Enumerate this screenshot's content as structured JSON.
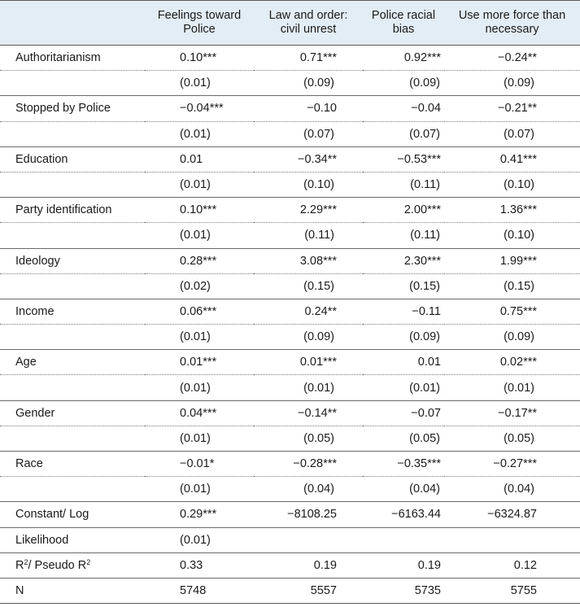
{
  "headers": [
    "",
    "Feelings toward Police",
    "Law and order: civil unrest",
    "Police racial bias",
    "Use more force than necessary"
  ],
  "header_lines": [
    [
      "Feelings toward",
      "Police"
    ],
    [
      "Law and order:",
      "civil unrest"
    ],
    [
      "Police racial",
      "bias"
    ],
    [
      "Use more force than",
      "necessary"
    ]
  ],
  "rows": [
    {
      "label": "Authoritarianism",
      "est": [
        "0.10***",
        "0.71***",
        "0.92***",
        "−0.24**"
      ],
      "se": [
        "(0.01)",
        "(0.09)",
        "(0.09)",
        "(0.09)"
      ]
    },
    {
      "label": "Stopped by Police",
      "est": [
        "−0.04***",
        "−0.10",
        "−0.04",
        "−0.21**"
      ],
      "se": [
        "(0.01)",
        "(0.07)",
        "(0.07)",
        "(0.07)"
      ]
    },
    {
      "label": "Education",
      "est": [
        "0.01",
        "−0.34**",
        "−0.53***",
        "0.41***"
      ],
      "se": [
        "(0.01)",
        "(0.10)",
        "(0.11)",
        "(0.10)"
      ]
    },
    {
      "label": "Party identification",
      "est": [
        "0.10***",
        "2.29***",
        "2.00***",
        "1.36***"
      ],
      "se": [
        "(0.01)",
        "(0.11)",
        "(0.11)",
        "(0.10)"
      ]
    },
    {
      "label": "Ideology",
      "est": [
        "0.28***",
        "3.08***",
        "2.30***",
        "1.99***"
      ],
      "se": [
        "(0.02)",
        "(0.15)",
        "(0.15)",
        "(0.15)"
      ]
    },
    {
      "label": "Income",
      "est": [
        "0.06***",
        "0.24**",
        "−0.11",
        "0.75***"
      ],
      "se": [
        "(0.01)",
        "(0.09)",
        "(0.09)",
        "(0.09)"
      ]
    },
    {
      "label": "Age",
      "est": [
        "0.01***",
        "0.01***",
        "0.01",
        "0.02***"
      ],
      "se": [
        "(0.01)",
        "(0.01)",
        "(0.01)",
        "(0.01)"
      ]
    },
    {
      "label": "Gender",
      "est": [
        "0.04***",
        "−0.14**",
        "−0.07",
        "−0.17**"
      ],
      "se": [
        "(0.01)",
        "(0.05)",
        "(0.05)",
        "(0.05)"
      ]
    },
    {
      "label": "Race",
      "est": [
        "−0.01*",
        "−0.28***",
        "−0.35***",
        "−0.27***"
      ],
      "se": [
        "(0.01)",
        "(0.04)",
        "(0.04)",
        "(0.04)"
      ]
    }
  ],
  "constant": {
    "label": "Constant/ Log",
    "values": [
      "0.29***",
      "−8108.25",
      "−6163.44",
      "−6324.87"
    ]
  },
  "likelihood": {
    "label": "Likelihood",
    "values": [
      "(0.01)",
      "",
      "",
      ""
    ]
  },
  "r2": {
    "label_main": "R",
    "label_sup": "2",
    "label_mid": "/ Pseudo R",
    "label_sup2": "2",
    "values": [
      "0.33",
      "0.19",
      "0.19",
      "0.12"
    ]
  },
  "n": {
    "label": "N",
    "values": [
      "5748",
      "5557",
      "5735",
      "5755"
    ]
  }
}
